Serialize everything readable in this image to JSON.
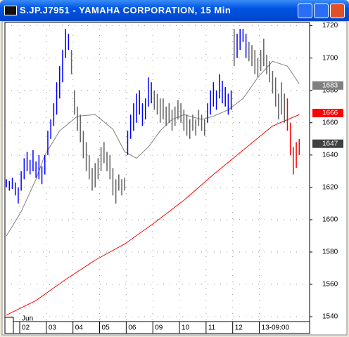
{
  "window_title": "S.JP.J7951 - YAMAHA CORPORATION, 15 Min",
  "chart_data": {
    "type": "ohlc",
    "xlim": [
      -0.5,
      102.5
    ],
    "ylim": [
      1537,
      1722
    ],
    "yticks": [
      1540,
      1560,
      1580,
      1600,
      1620,
      1640,
      1660,
      1680,
      1700,
      1720
    ],
    "xticks": [
      {
        "value": 5,
        "label": "02"
      },
      {
        "value": 14,
        "label": "03"
      },
      {
        "value": 23,
        "label": "04"
      },
      {
        "value": 32,
        "label": "05"
      },
      {
        "value": 41,
        "label": "06"
      },
      {
        "value": 50,
        "label": "09"
      },
      {
        "value": 59,
        "label": "10"
      },
      {
        "value": 68,
        "label": "11"
      },
      {
        "value": 77,
        "label": "12"
      },
      {
        "value": 86,
        "label": "13-09:00"
      }
    ],
    "month_label": "Jun",
    "grid": true,
    "series": [
      {
        "color": "#0000ff",
        "x": [
          0,
          1,
          2,
          3,
          4,
          5,
          6,
          7,
          8,
          9,
          10,
          11,
          12,
          13,
          14,
          15,
          16,
          17,
          18,
          19,
          20,
          21,
          41,
          42,
          43,
          44,
          45,
          46,
          47,
          48,
          49,
          68,
          69,
          70,
          71,
          72,
          73,
          74,
          75,
          76,
          78,
          79,
          80,
          81
        ],
        "high": [
          1625,
          1624,
          1626,
          1623,
          1620,
          1630,
          1638,
          1642,
          1637,
          1643,
          1636,
          1640,
          1633,
          1640,
          1655,
          1662,
          1672,
          1685,
          1695,
          1705,
          1718,
          1715,
          1655,
          1665,
          1672,
          1678,
          1680,
          1672,
          1675,
          1688,
          1685,
          1672,
          1680,
          1685,
          1680,
          1690,
          1686,
          1682,
          1678,
          1680,
          1715,
          1718,
          1718,
          1715
        ],
        "low": [
          1620,
          1618,
          1619,
          1615,
          1610,
          1618,
          1625,
          1630,
          1628,
          1630,
          1626,
          1625,
          1622,
          1628,
          1640,
          1650,
          1658,
          1665,
          1675,
          1685,
          1700,
          1705,
          1640,
          1650,
          1655,
          1660,
          1665,
          1658,
          1662,
          1670,
          1672,
          1660,
          1665,
          1670,
          1668,
          1675,
          1672,
          1670,
          1665,
          1668,
          1700,
          1705,
          1710,
          1700
        ]
      },
      {
        "color": "#606060",
        "x": [
          22,
          23,
          24,
          25,
          26,
          27,
          28,
          29,
          30,
          31,
          32,
          33,
          34,
          35,
          36,
          37,
          38,
          39,
          40,
          50,
          51,
          52,
          53,
          54,
          55,
          56,
          57,
          58,
          59,
          60,
          61,
          62,
          63,
          64,
          65,
          66,
          67,
          77,
          82,
          83,
          84,
          85,
          86,
          87,
          88,
          89,
          90,
          91,
          92,
          93,
          94
        ],
        "high": [
          1705,
          1680,
          1670,
          1665,
          1655,
          1648,
          1640,
          1632,
          1635,
          1638,
          1645,
          1648,
          1642,
          1640,
          1632,
          1625,
          1628,
          1625,
          1626,
          1680,
          1678,
          1675,
          1675,
          1670,
          1672,
          1668,
          1670,
          1674,
          1672,
          1668,
          1665,
          1662,
          1665,
          1662,
          1668,
          1665,
          1662,
          1718,
          1710,
          1708,
          1705,
          1700,
          1705,
          1712,
          1702,
          1698,
          1692,
          1688,
          1678,
          1685,
          1678
        ],
        "low": [
          1690,
          1665,
          1655,
          1648,
          1638,
          1630,
          1625,
          1618,
          1620,
          1625,
          1630,
          1635,
          1630,
          1625,
          1615,
          1610,
          1618,
          1615,
          1618,
          1668,
          1665,
          1660,
          1662,
          1658,
          1660,
          1655,
          1658,
          1662,
          1660,
          1655,
          1652,
          1650,
          1655,
          1652,
          1658,
          1655,
          1652,
          1695,
          1698,
          1695,
          1690,
          1688,
          1692,
          1695,
          1690,
          1685,
          1678,
          1670,
          1662,
          1665,
          1660
        ]
      },
      {
        "color": "#ff0000",
        "x": [
          95,
          96,
          97,
          98,
          99
        ],
        "high": [
          1675,
          1660,
          1645,
          1648,
          1650
        ],
        "low": [
          1655,
          1640,
          1628,
          1632,
          1640
        ]
      }
    ],
    "averages": [
      {
        "color": "#808080",
        "x": [
          0,
          5,
          10,
          13,
          18,
          24,
          30,
          36,
          40,
          44,
          48,
          52,
          56,
          60,
          66,
          70,
          75,
          80,
          85,
          90,
          95,
          99
        ],
        "values": [
          1590,
          1605,
          1625,
          1640,
          1655,
          1664,
          1665,
          1656,
          1642,
          1638,
          1645,
          1655,
          1662,
          1665,
          1662,
          1664,
          1668,
          1675,
          1688,
          1698,
          1695,
          1684
        ]
      },
      {
        "color": "#ff0000",
        "x": [
          0,
          10,
          20,
          30,
          40,
          50,
          60,
          70,
          80,
          90,
          99
        ],
        "values": [
          1541,
          1550,
          1563,
          1575,
          1585,
          1598,
          1612,
          1628,
          1643,
          1658,
          1665
        ]
      }
    ],
    "price_tags": [
      {
        "value": 1683,
        "color": "#808080"
      },
      {
        "value": 1666,
        "color": "#ff0000"
      },
      {
        "value": 1647,
        "color": "#404040"
      }
    ]
  }
}
